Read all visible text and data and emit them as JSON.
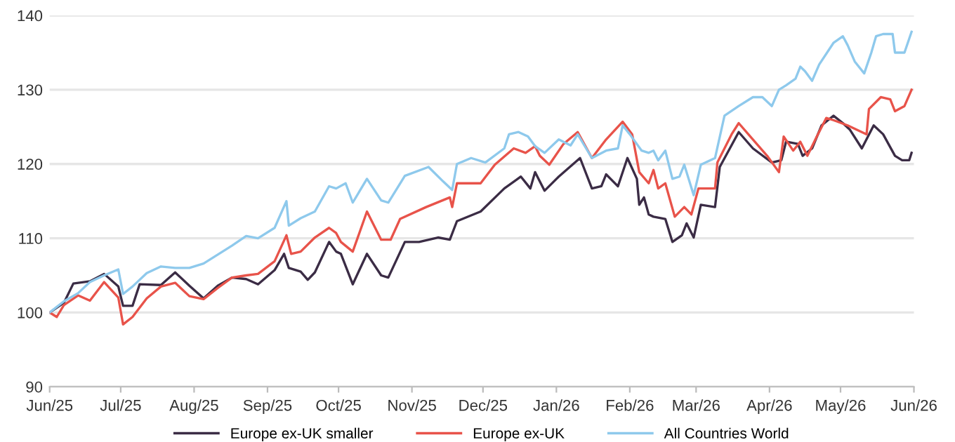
{
  "chart_data": {
    "type": "line",
    "ylim": [
      90,
      140
    ],
    "yticks": [
      90,
      100,
      110,
      120,
      130,
      140
    ],
    "grid": "y",
    "legend": "bottom",
    "line_style": "solid",
    "marker": "none",
    "xlim": [
      "2025-06-01",
      "2026-06-01"
    ],
    "xticks": [
      {
        "value": "2025-06-01",
        "label": "Jun/25"
      },
      {
        "value": "2025-07-01",
        "label": "Jul/25"
      },
      {
        "value": "2025-08-01",
        "label": "Aug/25"
      },
      {
        "value": "2025-09-01",
        "label": "Sep/25"
      },
      {
        "value": "2025-10-01",
        "label": "Oct/25"
      },
      {
        "value": "2025-11-01",
        "label": "Nov/25"
      },
      {
        "value": "2025-12-01",
        "label": "Dec/25"
      },
      {
        "value": "2026-01-01",
        "label": "Jan/26"
      },
      {
        "value": "2026-02-01",
        "label": "Feb/26"
      },
      {
        "value": "2026-03-01",
        "label": "Mar/26"
      },
      {
        "value": "2026-04-01",
        "label": "Apr/26"
      },
      {
        "value": "2026-05-01",
        "label": "May/26"
      },
      {
        "value": "2026-06-01",
        "label": "Jun/26"
      }
    ],
    "series": [
      {
        "name": "Europe ex-UK smaller",
        "color": "#3b2c45",
        "x": [
          "2025-06-01",
          "2025-06-07",
          "2025-06-11",
          "2025-06-18",
          "2025-06-24",
          "2025-06-30",
          "2025-07-02",
          "2025-07-06",
          "2025-07-09",
          "2025-07-18",
          "2025-07-24",
          "2025-07-30",
          "2025-08-05",
          "2025-08-11",
          "2025-08-17",
          "2025-08-23",
          "2025-08-28",
          "2025-09-04",
          "2025-09-08",
          "2025-09-10",
          "2025-09-15",
          "2025-09-18",
          "2025-09-21",
          "2025-09-27",
          "2025-09-30",
          "2025-10-02",
          "2025-10-07",
          "2025-10-13",
          "2025-10-19",
          "2025-10-22",
          "2025-10-29",
          "2025-11-04",
          "2025-11-12",
          "2025-11-17",
          "2025-11-20",
          "2025-11-30",
          "2025-12-10",
          "2025-12-17",
          "2025-12-21",
          "2025-12-23",
          "2025-12-27",
          "2026-01-02",
          "2026-01-11",
          "2026-01-16",
          "2026-01-20",
          "2026-01-22",
          "2026-01-27",
          "2026-01-31",
          "2026-02-04",
          "2026-02-05",
          "2026-02-07",
          "2026-02-09",
          "2026-02-11",
          "2026-02-16",
          "2026-02-19",
          "2026-02-23",
          "2026-02-25",
          "2026-02-28",
          "2026-03-03",
          "2026-03-09",
          "2026-03-11",
          "2026-03-19",
          "2026-03-25",
          "2026-04-02",
          "2026-04-06",
          "2026-04-08",
          "2026-04-13",
          "2026-04-15",
          "2026-04-19",
          "2026-04-23",
          "2026-04-28",
          "2026-05-02",
          "2026-05-05",
          "2026-05-10",
          "2026-05-15",
          "2026-05-19",
          "2026-05-24",
          "2026-05-27",
          "2026-05-30",
          "2026-05-31"
        ],
        "values": [
          100,
          101.3,
          103.9,
          104.2,
          105.2,
          103.5,
          100.9,
          100.9,
          103.8,
          103.7,
          105.4,
          103.6,
          101.9,
          103.6,
          104.7,
          104.5,
          103.8,
          105.7,
          107.9,
          106,
          105.5,
          104.4,
          105.4,
          109.5,
          108.2,
          107.9,
          103.8,
          107.9,
          105,
          104.7,
          109.5,
          109.5,
          110.1,
          109.8,
          112.3,
          113.6,
          116.7,
          118.3,
          116.7,
          118.9,
          116.4,
          118.3,
          120.8,
          116.7,
          117,
          118.6,
          117,
          120.8,
          118,
          114.5,
          115.5,
          113.2,
          112.9,
          112.6,
          109.5,
          110.4,
          112,
          110.1,
          114.5,
          114.2,
          119.6,
          124.3,
          122.1,
          120.2,
          120.5,
          123,
          122.7,
          121.1,
          122.1,
          125.2,
          126.5,
          125.5,
          124.6,
          122.1,
          125.2,
          124,
          121.1,
          120.5,
          120.5,
          121.5
        ]
      },
      {
        "name": "Europe ex-UK",
        "color": "#e8534a",
        "x": [
          "2025-06-01",
          "2025-06-04",
          "2025-06-07",
          "2025-06-13",
          "2025-06-18",
          "2025-06-24",
          "2025-06-30",
          "2025-07-02",
          "2025-07-06",
          "2025-07-12",
          "2025-07-18",
          "2025-07-24",
          "2025-07-30",
          "2025-08-05",
          "2025-08-11",
          "2025-08-17",
          "2025-08-23",
          "2025-08-28",
          "2025-09-04",
          "2025-09-09",
          "2025-09-11",
          "2025-09-15",
          "2025-09-21",
          "2025-09-27",
          "2025-09-30",
          "2025-10-02",
          "2025-10-07",
          "2025-10-13",
          "2025-10-19",
          "2025-10-23",
          "2025-10-27",
          "2025-11-07",
          "2025-11-17",
          "2025-11-18",
          "2025-11-20",
          "2025-11-30",
          "2025-12-06",
          "2025-12-14",
          "2025-12-19",
          "2025-12-23",
          "2025-12-25",
          "2025-12-29",
          "2026-01-04",
          "2026-01-10",
          "2026-01-16",
          "2026-01-22",
          "2026-01-29",
          "2026-02-02",
          "2026-02-05",
          "2026-02-09",
          "2026-02-11",
          "2026-02-13",
          "2026-02-16",
          "2026-02-20",
          "2026-02-24",
          "2026-02-27",
          "2026-03-02",
          "2026-03-09",
          "2026-03-10",
          "2026-03-16",
          "2026-03-19",
          "2026-03-25",
          "2026-03-31",
          "2026-04-05",
          "2026-04-07",
          "2026-04-11",
          "2026-04-14",
          "2026-04-17",
          "2026-04-21",
          "2026-04-25",
          "2026-04-28",
          "2026-05-04",
          "2026-05-12",
          "2026-05-13",
          "2026-05-18",
          "2026-05-22",
          "2026-05-24",
          "2026-05-28",
          "2026-05-31"
        ],
        "values": [
          100,
          99.4,
          101,
          102.3,
          101.6,
          104.1,
          102,
          98.4,
          99.4,
          101.9,
          103.5,
          104,
          102.2,
          101.8,
          103.3,
          104.7,
          105,
          105.2,
          106.9,
          110.4,
          107.9,
          108.2,
          110.1,
          111.4,
          110.7,
          109.5,
          108.2,
          113.6,
          109.8,
          109.8,
          112.6,
          114.2,
          115.5,
          114.2,
          117.4,
          117.4,
          119.9,
          122.1,
          121.5,
          122.4,
          121.1,
          119.9,
          122.7,
          124.3,
          120.8,
          123.3,
          125.7,
          124,
          118.9,
          117.4,
          119.2,
          116.7,
          117.4,
          112.9,
          114.2,
          113.2,
          116.7,
          116.7,
          120.2,
          124,
          125.5,
          123.3,
          121.1,
          118.9,
          123.7,
          121.8,
          123,
          121.1,
          123.7,
          126.2,
          125.9,
          125.2,
          124,
          127.4,
          129,
          128.7,
          127.1,
          127.8,
          130
        ]
      },
      {
        "name": "All Countries World",
        "color": "#8ec9ec",
        "x": [
          "2025-06-01",
          "2025-06-07",
          "2025-06-13",
          "2025-06-18",
          "2025-06-24",
          "2025-06-30",
          "2025-07-02",
          "2025-07-06",
          "2025-07-12",
          "2025-07-18",
          "2025-07-24",
          "2025-07-30",
          "2025-08-05",
          "2025-08-11",
          "2025-08-17",
          "2025-08-23",
          "2025-08-28",
          "2025-09-04",
          "2025-09-09",
          "2025-09-10",
          "2025-09-15",
          "2025-09-21",
          "2025-09-27",
          "2025-09-30",
          "2025-10-04",
          "2025-10-07",
          "2025-10-13",
          "2025-10-19",
          "2025-10-22",
          "2025-10-29",
          "2025-11-08",
          "2025-11-14",
          "2025-11-18",
          "2025-11-20",
          "2025-11-26",
          "2025-12-02",
          "2025-12-10",
          "2025-12-12",
          "2025-12-16",
          "2025-12-20",
          "2025-12-23",
          "2025-12-27",
          "2026-01-02",
          "2026-01-07",
          "2026-01-10",
          "2026-01-16",
          "2026-01-22",
          "2026-01-27",
          "2026-01-29",
          "2026-02-01",
          "2026-02-06",
          "2026-02-09",
          "2026-02-11",
          "2026-02-13",
          "2026-02-16",
          "2026-02-19",
          "2026-02-22",
          "2026-02-24",
          "2026-02-28",
          "2026-03-03",
          "2026-03-09",
          "2026-03-13",
          "2026-03-19",
          "2026-03-25",
          "2026-03-29",
          "2026-04-02",
          "2026-04-05",
          "2026-04-08",
          "2026-04-12",
          "2026-04-14",
          "2026-04-16",
          "2026-04-19",
          "2026-04-22",
          "2026-04-28",
          "2026-05-02",
          "2026-05-04",
          "2026-05-07",
          "2026-05-11",
          "2026-05-14",
          "2026-05-16",
          "2026-05-19",
          "2026-05-23",
          "2026-05-24",
          "2026-05-28",
          "2026-05-31"
        ],
        "values": [
          100,
          101.5,
          102.6,
          104.1,
          105,
          105.8,
          102.5,
          103.5,
          105.3,
          106.2,
          106,
          106,
          106.6,
          107.8,
          109,
          110.3,
          110,
          111.4,
          115,
          111.7,
          112.7,
          113.6,
          117,
          116.7,
          117.4,
          114.8,
          118,
          115.1,
          114.8,
          118.4,
          119.6,
          117.7,
          116.5,
          120,
          120.8,
          120.2,
          122.1,
          124,
          124.3,
          123.7,
          122.4,
          121.5,
          123.3,
          122.5,
          124,
          120.8,
          121.8,
          122.1,
          125.2,
          124,
          121.8,
          121.5,
          121.8,
          120.5,
          121.8,
          118,
          118.3,
          119.9,
          115.8,
          119.9,
          120.8,
          126.5,
          127.8,
          129,
          129,
          127.8,
          130,
          130.6,
          131.5,
          133.1,
          132.5,
          131.2,
          133.4,
          136.3,
          137.2,
          136,
          133.8,
          132.2,
          135,
          137.2,
          137.5,
          137.5,
          135,
          135,
          137.8
        ]
      }
    ]
  }
}
